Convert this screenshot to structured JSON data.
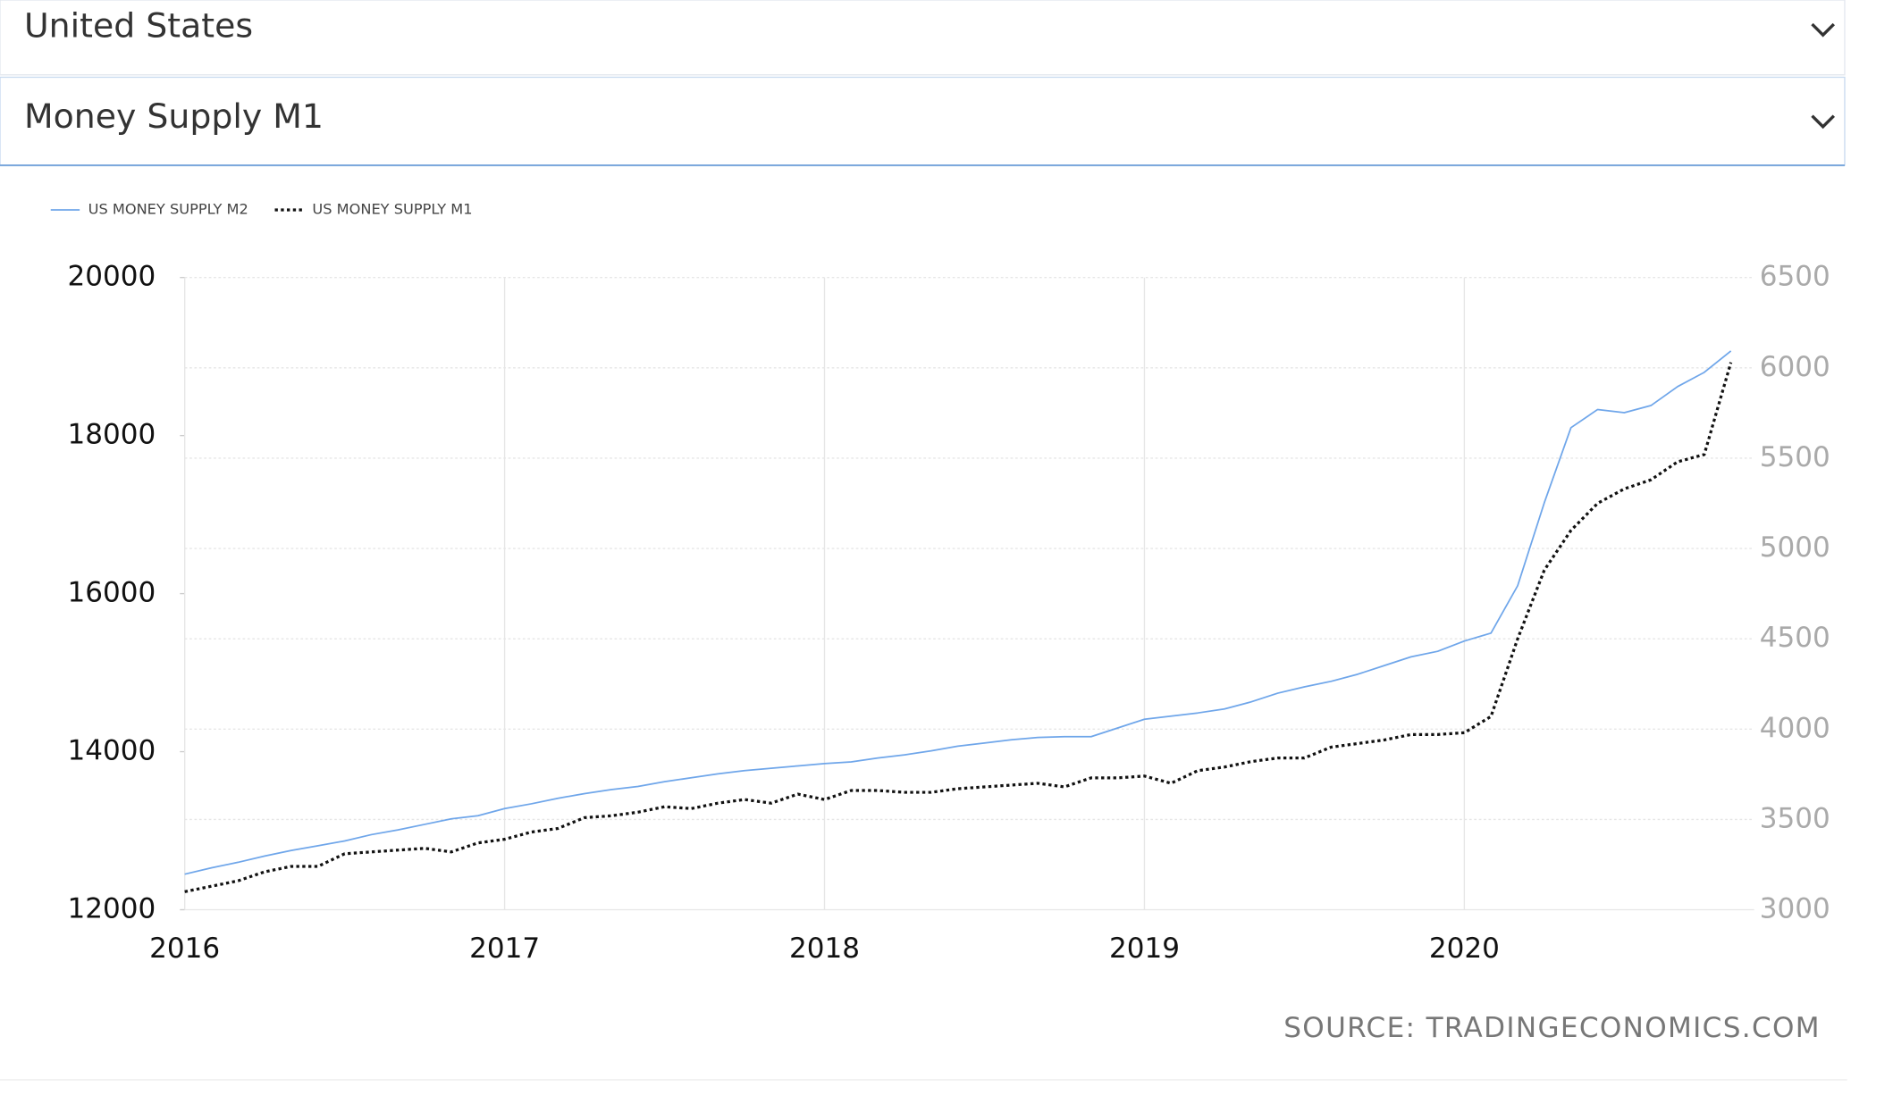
{
  "dropdowns": [
    {
      "label": "United States"
    },
    {
      "label": "Money Supply M1"
    }
  ],
  "chart_data": {
    "type": "line",
    "x": [
      2016,
      2016.0833,
      2016.1667,
      2016.25,
      2016.3333,
      2016.4167,
      2016.5,
      2016.5833,
      2016.6667,
      2016.75,
      2016.8333,
      2016.9167,
      2017,
      2017.0833,
      2017.1667,
      2017.25,
      2017.3333,
      2017.4167,
      2017.5,
      2017.5833,
      2017.6667,
      2017.75,
      2017.8333,
      2017.9167,
      2018,
      2018.0833,
      2018.1667,
      2018.25,
      2018.3333,
      2018.4167,
      2018.5,
      2018.5833,
      2018.6667,
      2018.75,
      2018.8333,
      2018.9167,
      2019,
      2019.0833,
      2019.1667,
      2019.25,
      2019.3333,
      2019.4167,
      2019.5,
      2019.5833,
      2019.6667,
      2019.75,
      2019.8333,
      2019.9167,
      2020,
      2020.0833,
      2020.1667,
      2020.25,
      2020.3333,
      2020.4167,
      2020.5,
      2020.5833,
      2020.6667,
      2020.75,
      2020.8333
    ],
    "series": [
      {
        "name": "US MONEY SUPPLY M2",
        "color": "#6fa6ea",
        "line_style": "solid",
        "axis": "y",
        "values": [
          12450,
          12530,
          12600,
          12680,
          12750,
          12810,
          12870,
          12950,
          13010,
          13080,
          13150,
          13190,
          13280,
          13340,
          13410,
          13470,
          13520,
          13560,
          13620,
          13670,
          13720,
          13760,
          13790,
          13820,
          13850,
          13870,
          13920,
          13960,
          14010,
          14070,
          14110,
          14150,
          14180,
          14190,
          14190,
          14300,
          14410,
          14450,
          14490,
          14540,
          14630,
          14740,
          14820,
          14890,
          14980,
          15090,
          15200,
          15270,
          15400,
          15500,
          16100,
          17150,
          18100,
          18330,
          18290,
          18380,
          18620,
          18800,
          19070
        ]
      },
      {
        "name": "US MONEY SUPPLY M1",
        "color": "#111111",
        "line_style": "dotted",
        "axis": "y2",
        "values": [
          3100,
          3130,
          3160,
          3210,
          3240,
          3240,
          3310,
          3320,
          3330,
          3340,
          3320,
          3370,
          3390,
          3430,
          3450,
          3510,
          3520,
          3540,
          3570,
          3560,
          3590,
          3610,
          3590,
          3640,
          3610,
          3660,
          3660,
          3650,
          3650,
          3670,
          3680,
          3690,
          3700,
          3680,
          3730,
          3730,
          3740,
          3700,
          3770,
          3790,
          3820,
          3840,
          3840,
          3900,
          3920,
          3940,
          3970,
          3970,
          3980,
          4070,
          4500,
          4880,
          5100,
          5250,
          5330,
          5380,
          5480,
          5520,
          6030
        ]
      }
    ],
    "xlim": [
      2016,
      2020.906
    ],
    "xticks": [
      2016,
      2017,
      2018,
      2019,
      2020
    ],
    "ylim": [
      12000,
      20000
    ],
    "yticks": [
      12000,
      14000,
      16000,
      18000,
      20000
    ],
    "y2lim": [
      3000,
      6500
    ],
    "y2ticks": [
      3000,
      3500,
      4000,
      4500,
      5000,
      5500,
      6000,
      6500
    ],
    "grid": true,
    "legend": "top-left",
    "source": "SOURCE: TRADINGECONOMICS.COM"
  }
}
